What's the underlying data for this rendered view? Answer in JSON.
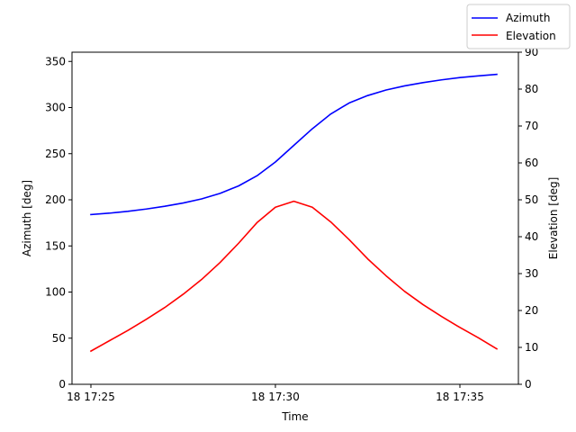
{
  "chart_data": {
    "type": "line",
    "xlabel": "Time",
    "x_ticks": [
      "18 17:25",
      "18 17:30",
      "18 17:35"
    ],
    "x": [
      "17:25:00",
      "17:25:30",
      "17:26:00",
      "17:26:30",
      "17:27:00",
      "17:27:30",
      "17:28:00",
      "17:28:30",
      "17:29:00",
      "17:29:30",
      "17:30:00",
      "17:30:30",
      "17:31:00",
      "17:31:30",
      "17:32:00",
      "17:32:30",
      "17:33:00",
      "17:33:30",
      "17:34:00",
      "17:34:30",
      "17:35:00",
      "17:35:30",
      "17:36:00"
    ],
    "left_axis": {
      "label": "Azimuth [deg]",
      "ylim": [
        0,
        360
      ],
      "ticks": [
        "0",
        "50",
        "100",
        "150",
        "200",
        "250",
        "300",
        "350"
      ]
    },
    "right_axis": {
      "label": "Elevation [deg]",
      "ylim": [
        0,
        90
      ],
      "ticks": [
        "0",
        "10",
        "20",
        "30",
        "40",
        "50",
        "60",
        "70",
        "80",
        "90"
      ]
    },
    "series": [
      {
        "name": "Azimuth",
        "axis": "left",
        "color": "#0000ff",
        "values": [
          184,
          185.5,
          187.5,
          190,
          193,
          196.5,
          201,
          207,
          215,
          226,
          241,
          259,
          277,
          293,
          305,
          313,
          319,
          323.5,
          327,
          330,
          332.5,
          334.3,
          336
        ]
      },
      {
        "name": "Elevation",
        "axis": "right",
        "color": "#ff0000",
        "values": [
          9,
          11.8,
          14.6,
          17.6,
          20.8,
          24.4,
          28.4,
          33,
          38.2,
          43.8,
          48,
          49.6,
          48,
          44,
          39.2,
          34,
          29.4,
          25.2,
          21.6,
          18.4,
          15.4,
          12.6,
          9.6
        ]
      }
    ],
    "legend_position": "top-right",
    "grid": false
  }
}
